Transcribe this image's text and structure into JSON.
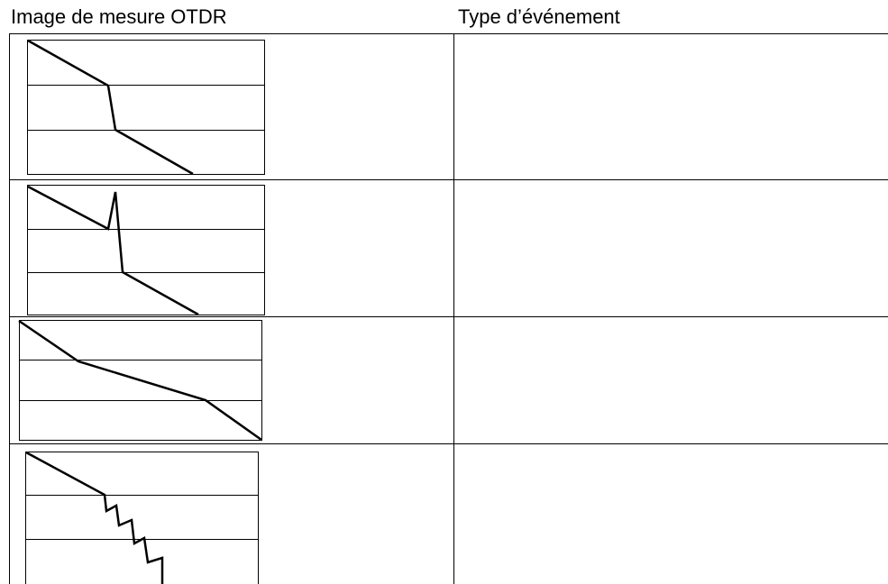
{
  "header": {
    "columns": [
      "Image de mesure OTDR",
      "Type d’événement"
    ]
  }
}
